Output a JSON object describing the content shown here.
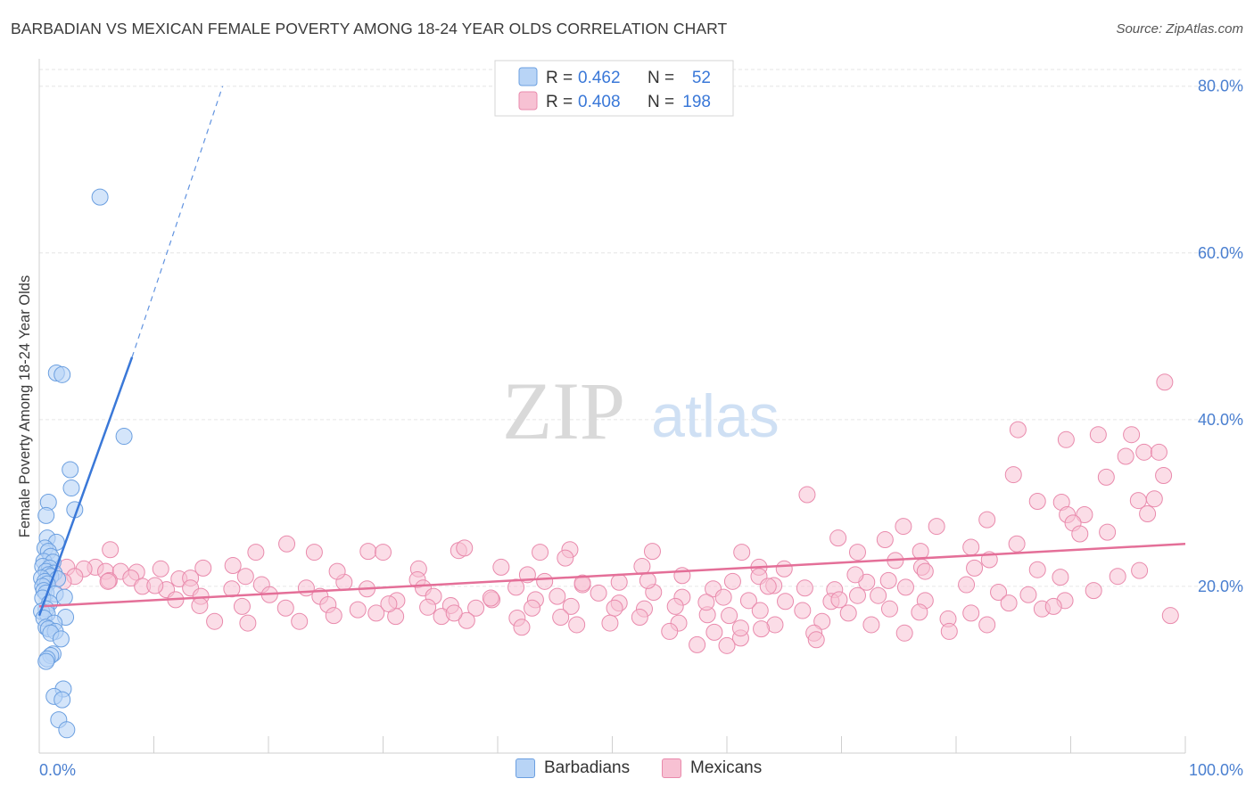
{
  "header": {
    "title": "BARBADIAN VS MEXICAN FEMALE POVERTY AMONG 18-24 YEAR OLDS CORRELATION CHART",
    "source": "Source: ZipAtlas.com"
  },
  "watermark": {
    "part1": "ZIP",
    "part2": "atlas"
  },
  "colors": {
    "barbadians_fill": "#b8d4f6",
    "barbadians_stroke": "#6b9fe0",
    "barbadians_line": "#3a78d8",
    "mexicans_fill": "#f7c1d3",
    "mexicans_stroke": "#e98aac",
    "mexicans_line": "#e46f98",
    "tick_text": "#4a7fd0",
    "grid": "#e6e6e6"
  },
  "legend": {
    "rows": [
      {
        "r_label": "R =",
        "r_value": "0.462",
        "n_label": "N =",
        "n_value": "52"
      },
      {
        "r_label": "R =",
        "r_value": "0.408",
        "n_label": "N =",
        "n_value": "198"
      }
    ]
  },
  "bottom_legend": {
    "barbadians": "Barbadians",
    "mexicans": "Mexicans"
  },
  "chart_data": {
    "type": "scatter",
    "title": "BARBADIAN VS MEXICAN FEMALE POVERTY AMONG 18-24 YEAR OLDS CORRELATION CHART",
    "xlabel": "",
    "ylabel": "Female Poverty Among 18-24 Year Olds",
    "xlim": [
      0,
      100
    ],
    "ylim": [
      0,
      82
    ],
    "x_tick_labels": [
      "0.0%",
      "100.0%"
    ],
    "y_ticks": [
      20,
      40,
      60,
      80
    ],
    "y_tick_labels": [
      "20.0%",
      "40.0%",
      "60.0%",
      "80.0%"
    ],
    "grid": true,
    "legend_position": "top-center",
    "series": [
      {
        "name": "Barbadians",
        "R": 0.462,
        "N": 52,
        "trend": {
          "x": [
            0,
            8.1
          ],
          "y": [
            16.5,
            47.5
          ],
          "dashed_to": [
            16,
            80
          ]
        },
        "points": [
          [
            5.3,
            66.7
          ],
          [
            1.5,
            45.6
          ],
          [
            2.0,
            45.4
          ],
          [
            7.4,
            38.0
          ],
          [
            2.7,
            34.0
          ],
          [
            2.8,
            31.8
          ],
          [
            0.8,
            30.1
          ],
          [
            3.1,
            29.2
          ],
          [
            0.6,
            28.5
          ],
          [
            0.7,
            25.8
          ],
          [
            1.5,
            25.3
          ],
          [
            0.5,
            24.6
          ],
          [
            0.8,
            24.2
          ],
          [
            1.0,
            23.6
          ],
          [
            0.4,
            23.0
          ],
          [
            1.2,
            22.9
          ],
          [
            0.3,
            22.4
          ],
          [
            0.9,
            22.2
          ],
          [
            0.6,
            21.8
          ],
          [
            1.3,
            21.6
          ],
          [
            0.8,
            21.4
          ],
          [
            1.0,
            21.2
          ],
          [
            0.2,
            21.0
          ],
          [
            1.6,
            20.9
          ],
          [
            0.5,
            20.6
          ],
          [
            0.7,
            20.3
          ],
          [
            0.3,
            20.0
          ],
          [
            0.4,
            19.5
          ],
          [
            0.6,
            19.2
          ],
          [
            1.4,
            19.1
          ],
          [
            2.2,
            18.7
          ],
          [
            0.3,
            18.6
          ],
          [
            0.9,
            18.0
          ],
          [
            0.6,
            17.3
          ],
          [
            0.2,
            17.0
          ],
          [
            0.7,
            16.7
          ],
          [
            2.3,
            16.3
          ],
          [
            0.4,
            16.2
          ],
          [
            1.3,
            15.6
          ],
          [
            0.6,
            15.1
          ],
          [
            0.8,
            14.9
          ],
          [
            1.4,
            14.6
          ],
          [
            1.0,
            14.4
          ],
          [
            1.9,
            13.7
          ],
          [
            1.2,
            11.9
          ],
          [
            1.0,
            11.7
          ],
          [
            0.7,
            11.3
          ],
          [
            0.6,
            11.0
          ],
          [
            2.1,
            7.7
          ],
          [
            1.3,
            6.8
          ],
          [
            2.0,
            6.4
          ],
          [
            1.7,
            4.0
          ],
          [
            2.4,
            2.8
          ]
        ]
      },
      {
        "name": "Mexicans",
        "R": 0.408,
        "N": 198,
        "trend": {
          "x": [
            0,
            100
          ],
          "y": [
            17.6,
            25.1
          ]
        },
        "points": [
          [
            98.2,
            44.5
          ],
          [
            95.3,
            38.2
          ],
          [
            92.4,
            38.2
          ],
          [
            85.4,
            38.8
          ],
          [
            89.6,
            37.6
          ],
          [
            96.4,
            36.1
          ],
          [
            97.7,
            36.1
          ],
          [
            94.8,
            35.6
          ],
          [
            85.0,
            33.4
          ],
          [
            93.1,
            33.1
          ],
          [
            98.1,
            33.3
          ],
          [
            67.0,
            31.0
          ],
          [
            87.1,
            30.2
          ],
          [
            89.2,
            30.1
          ],
          [
            95.9,
            30.3
          ],
          [
            97.3,
            30.5
          ],
          [
            89.7,
            28.6
          ],
          [
            91.2,
            28.6
          ],
          [
            96.7,
            28.7
          ],
          [
            82.7,
            28.0
          ],
          [
            90.2,
            27.6
          ],
          [
            75.4,
            27.2
          ],
          [
            78.3,
            27.2
          ],
          [
            90.8,
            26.3
          ],
          [
            93.2,
            26.5
          ],
          [
            69.7,
            25.8
          ],
          [
            73.8,
            25.6
          ],
          [
            85.3,
            25.1
          ],
          [
            6.2,
            24.4
          ],
          [
            21.6,
            25.1
          ],
          [
            18.9,
            24.1
          ],
          [
            24.0,
            24.1
          ],
          [
            28.7,
            24.2
          ],
          [
            30.0,
            24.1
          ],
          [
            36.6,
            24.3
          ],
          [
            43.7,
            24.1
          ],
          [
            46.3,
            24.4
          ],
          [
            53.5,
            24.2
          ],
          [
            61.3,
            24.1
          ],
          [
            71.4,
            24.1
          ],
          [
            76.9,
            24.2
          ],
          [
            81.3,
            24.7
          ],
          [
            82.9,
            23.2
          ],
          [
            16.9,
            22.5
          ],
          [
            33.1,
            22.1
          ],
          [
            40.3,
            22.3
          ],
          [
            52.6,
            22.4
          ],
          [
            65.0,
            22.1
          ],
          [
            77.0,
            22.3
          ],
          [
            62.8,
            22.3
          ],
          [
            74.7,
            23.1
          ],
          [
            81.6,
            22.2
          ],
          [
            87.1,
            22.0
          ],
          [
            89.1,
            21.1
          ],
          [
            94.1,
            21.2
          ],
          [
            8.5,
            21.7
          ],
          [
            10.6,
            22.1
          ],
          [
            14.3,
            22.2
          ],
          [
            4.9,
            22.3
          ],
          [
            3.9,
            22.1
          ],
          [
            2.4,
            22.3
          ],
          [
            5.8,
            21.8
          ],
          [
            7.1,
            21.8
          ],
          [
            3.1,
            21.2
          ],
          [
            6.1,
            20.7
          ],
          [
            8.0,
            21.0
          ],
          [
            12.2,
            20.9
          ],
          [
            13.2,
            21.0
          ],
          [
            26.6,
            20.5
          ],
          [
            33.0,
            20.8
          ],
          [
            44.1,
            20.6
          ],
          [
            47.4,
            20.2
          ],
          [
            50.6,
            20.5
          ],
          [
            56.1,
            21.3
          ],
          [
            60.5,
            20.6
          ],
          [
            62.8,
            21.2
          ],
          [
            66.8,
            19.8
          ],
          [
            72.2,
            20.5
          ],
          [
            75.6,
            19.9
          ],
          [
            80.9,
            20.2
          ],
          [
            2.1,
            20.6
          ],
          [
            9.0,
            20.0
          ],
          [
            11.1,
            19.6
          ],
          [
            13.2,
            19.8
          ],
          [
            16.8,
            19.7
          ],
          [
            19.4,
            20.2
          ],
          [
            23.3,
            19.8
          ],
          [
            28.6,
            19.7
          ],
          [
            33.5,
            19.8
          ],
          [
            41.6,
            19.9
          ],
          [
            48.8,
            19.2
          ],
          [
            53.6,
            19.3
          ],
          [
            58.8,
            19.7
          ],
          [
            64.1,
            20.1
          ],
          [
            69.4,
            19.6
          ],
          [
            71.4,
            18.9
          ],
          [
            83.7,
            19.3
          ],
          [
            86.3,
            19.0
          ],
          [
            89.5,
            18.3
          ],
          [
            11.9,
            18.4
          ],
          [
            14.1,
            18.8
          ],
          [
            20.1,
            19.0
          ],
          [
            24.5,
            18.8
          ],
          [
            31.2,
            18.3
          ],
          [
            34.4,
            18.8
          ],
          [
            39.5,
            18.4
          ],
          [
            43.3,
            18.4
          ],
          [
            50.6,
            18.0
          ],
          [
            56.1,
            18.7
          ],
          [
            59.7,
            18.7
          ],
          [
            61.9,
            18.3
          ],
          [
            65.1,
            18.2
          ],
          [
            69.1,
            18.2
          ],
          [
            73.2,
            18.9
          ],
          [
            77.3,
            18.3
          ],
          [
            84.6,
            18.0
          ],
          [
            87.5,
            17.3
          ],
          [
            14.0,
            17.7
          ],
          [
            17.7,
            17.6
          ],
          [
            21.5,
            17.4
          ],
          [
            25.2,
            17.8
          ],
          [
            27.8,
            17.2
          ],
          [
            29.4,
            16.8
          ],
          [
            33.9,
            17.5
          ],
          [
            35.9,
            17.7
          ],
          [
            38.1,
            17.4
          ],
          [
            43.0,
            17.4
          ],
          [
            46.4,
            17.6
          ],
          [
            50.2,
            17.4
          ],
          [
            52.8,
            17.3
          ],
          [
            55.5,
            17.6
          ],
          [
            58.3,
            16.6
          ],
          [
            62.9,
            17.1
          ],
          [
            66.6,
            17.1
          ],
          [
            70.6,
            16.8
          ],
          [
            74.2,
            17.3
          ],
          [
            76.8,
            16.9
          ],
          [
            81.3,
            16.8
          ],
          [
            15.3,
            15.8
          ],
          [
            18.2,
            15.6
          ],
          [
            22.7,
            15.8
          ],
          [
            25.7,
            16.5
          ],
          [
            31.1,
            16.4
          ],
          [
            35.1,
            16.4
          ],
          [
            37.3,
            15.9
          ],
          [
            41.7,
            16.2
          ],
          [
            45.5,
            16.3
          ],
          [
            49.8,
            15.6
          ],
          [
            52.4,
            16.3
          ],
          [
            55.8,
            15.6
          ],
          [
            60.2,
            16.5
          ],
          [
            64.2,
            15.4
          ],
          [
            68.3,
            15.8
          ],
          [
            72.6,
            15.4
          ],
          [
            79.3,
            16.1
          ],
          [
            82.7,
            15.4
          ],
          [
            98.7,
            16.5
          ],
          [
            42.1,
            15.1
          ],
          [
            46.9,
            15.4
          ],
          [
            55.0,
            14.6
          ],
          [
            58.9,
            14.5
          ],
          [
            63.0,
            14.9
          ],
          [
            67.6,
            14.4
          ],
          [
            75.5,
            14.4
          ],
          [
            79.4,
            14.6
          ],
          [
            61.2,
            13.8
          ],
          [
            57.4,
            13.0
          ],
          [
            60.0,
            12.9
          ],
          [
            67.8,
            13.6
          ],
          [
            61.2,
            15.0
          ],
          [
            39.4,
            18.6
          ],
          [
            47.4,
            20.4
          ],
          [
            37.1,
            24.6
          ],
          [
            45.9,
            23.4
          ],
          [
            63.6,
            20.0
          ],
          [
            71.2,
            21.4
          ],
          [
            74.1,
            20.7
          ],
          [
            26.0,
            21.8
          ],
          [
            53.1,
            20.7
          ],
          [
            42.6,
            21.4
          ],
          [
            18.0,
            21.2
          ],
          [
            10.1,
            20.1
          ],
          [
            6.0,
            20.6
          ],
          [
            30.5,
            17.9
          ],
          [
            36.2,
            16.8
          ],
          [
            45.2,
            18.8
          ],
          [
            58.2,
            18.1
          ],
          [
            69.8,
            18.4
          ],
          [
            77.3,
            21.8
          ],
          [
            88.5,
            17.6
          ],
          [
            92.0,
            19.5
          ],
          [
            96.0,
            21.9
          ]
        ]
      }
    ]
  }
}
